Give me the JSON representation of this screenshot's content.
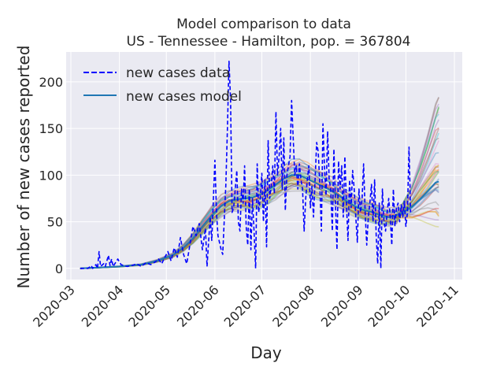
{
  "chart_data": {
    "type": "line",
    "title": "Model comparison to data",
    "subtitle": "US - Tennessee - Hamilton, pop. = 367804",
    "xlabel": "Day",
    "ylabel": "Number of new cases reported",
    "x_tick_labels": [
      "2020-03",
      "2020-04",
      "2020-05",
      "2020-06",
      "2020-07",
      "2020-08",
      "2020-09",
      "2020-10",
      "2020-11"
    ],
    "y_ticks": [
      0,
      50,
      100,
      150,
      200
    ],
    "x_range": [
      "2020-02-27",
      "2020-11-06"
    ],
    "ylim": [
      -12,
      232
    ],
    "grid": true,
    "legend_position": "upper-left",
    "series": [
      {
        "name": "new cases data",
        "style": "dashed",
        "color": "#0000ff",
        "points": [
          [
            "2020-03-07",
            0
          ],
          [
            "2020-03-12",
            0
          ],
          [
            "2020-03-14",
            3
          ],
          [
            "2020-03-15",
            0
          ],
          [
            "2020-03-17",
            4
          ],
          [
            "2020-03-18",
            0
          ],
          [
            "2020-03-19",
            18
          ],
          [
            "2020-03-20",
            2
          ],
          [
            "2020-03-22",
            5
          ],
          [
            "2020-03-23",
            2
          ],
          [
            "2020-03-25",
            14
          ],
          [
            "2020-03-26",
            3
          ],
          [
            "2020-03-27",
            10
          ],
          [
            "2020-03-28",
            2
          ],
          [
            "2020-03-31",
            10
          ],
          [
            "2020-04-02",
            4
          ],
          [
            "2020-04-04",
            3
          ],
          [
            "2020-04-06",
            2
          ],
          [
            "2020-04-09",
            3
          ],
          [
            "2020-04-12",
            5
          ],
          [
            "2020-04-15",
            2
          ],
          [
            "2020-04-18",
            6
          ],
          [
            "2020-04-21",
            4
          ],
          [
            "2020-04-24",
            7
          ],
          [
            "2020-04-26",
            10
          ],
          [
            "2020-04-28",
            5
          ],
          [
            "2020-04-30",
            12
          ],
          [
            "2020-05-02",
            18
          ],
          [
            "2020-05-04",
            8
          ],
          [
            "2020-05-06",
            22
          ],
          [
            "2020-05-08",
            12
          ],
          [
            "2020-05-10",
            33
          ],
          [
            "2020-05-12",
            15
          ],
          [
            "2020-05-14",
            5
          ],
          [
            "2020-05-16",
            25
          ],
          [
            "2020-05-18",
            45
          ],
          [
            "2020-05-20",
            35
          ],
          [
            "2020-05-22",
            48
          ],
          [
            "2020-05-24",
            20
          ],
          [
            "2020-05-26",
            43
          ],
          [
            "2020-05-27",
            2
          ],
          [
            "2020-05-29",
            55
          ],
          [
            "2020-05-30",
            30
          ],
          [
            "2020-06-01",
            116
          ],
          [
            "2020-06-02",
            60
          ],
          [
            "2020-06-03",
            35
          ],
          [
            "2020-06-05",
            20
          ],
          [
            "2020-06-06",
            15
          ],
          [
            "2020-06-08",
            90
          ],
          [
            "2020-06-09",
            150
          ],
          [
            "2020-06-10",
            222
          ],
          [
            "2020-06-11",
            180
          ],
          [
            "2020-06-12",
            60
          ],
          [
            "2020-06-13",
            65
          ],
          [
            "2020-06-15",
            105
          ],
          [
            "2020-06-16",
            50
          ],
          [
            "2020-06-17",
            40
          ],
          [
            "2020-06-18",
            85
          ],
          [
            "2020-06-19",
            70
          ],
          [
            "2020-06-20",
            110
          ],
          [
            "2020-06-21",
            45
          ],
          [
            "2020-06-22",
            25
          ],
          [
            "2020-06-23",
            85
          ],
          [
            "2020-06-24",
            20
          ],
          [
            "2020-06-25",
            75
          ],
          [
            "2020-06-26",
            40
          ],
          [
            "2020-06-27",
            0
          ],
          [
            "2020-06-28",
            112
          ],
          [
            "2020-06-29",
            60
          ],
          [
            "2020-06-30",
            75
          ],
          [
            "2020-07-01",
            102
          ],
          [
            "2020-07-02",
            50
          ],
          [
            "2020-07-03",
            95
          ],
          [
            "2020-07-04",
            23
          ],
          [
            "2020-07-05",
            137
          ],
          [
            "2020-07-06",
            75
          ],
          [
            "2020-07-07",
            88
          ],
          [
            "2020-07-08",
            110
          ],
          [
            "2020-07-09",
            80
          ],
          [
            "2020-07-10",
            168
          ],
          [
            "2020-07-11",
            100
          ],
          [
            "2020-07-12",
            120
          ],
          [
            "2020-07-13",
            150
          ],
          [
            "2020-07-14",
            85
          ],
          [
            "2020-07-15",
            140
          ],
          [
            "2020-07-16",
            62
          ],
          [
            "2020-07-17",
            100
          ],
          [
            "2020-07-18",
            110
          ],
          [
            "2020-07-19",
            120
          ],
          [
            "2020-07-20",
            180
          ],
          [
            "2020-07-21",
            140
          ],
          [
            "2020-07-22",
            100
          ],
          [
            "2020-07-23",
            110
          ],
          [
            "2020-07-24",
            85
          ],
          [
            "2020-07-25",
            112
          ],
          [
            "2020-07-26",
            95
          ],
          [
            "2020-07-27",
            85
          ],
          [
            "2020-07-28",
            40
          ],
          [
            "2020-07-29",
            75
          ],
          [
            "2020-07-30",
            95
          ],
          [
            "2020-07-31",
            110
          ],
          [
            "2020-08-01",
            65
          ],
          [
            "2020-08-02",
            88
          ],
          [
            "2020-08-03",
            55
          ],
          [
            "2020-08-04",
            95
          ],
          [
            "2020-08-05",
            135
          ],
          [
            "2020-08-06",
            125
          ],
          [
            "2020-08-07",
            90
          ],
          [
            "2020-08-08",
            40
          ],
          [
            "2020-08-09",
            155
          ],
          [
            "2020-08-10",
            110
          ],
          [
            "2020-08-11",
            78
          ],
          [
            "2020-08-12",
            147
          ],
          [
            "2020-08-13",
            95
          ],
          [
            "2020-08-14",
            85
          ],
          [
            "2020-08-15",
            40
          ],
          [
            "2020-08-16",
            128
          ],
          [
            "2020-08-17",
            70
          ],
          [
            "2020-08-18",
            20
          ],
          [
            "2020-08-19",
            115
          ],
          [
            "2020-08-20",
            85
          ],
          [
            "2020-08-21",
            110
          ],
          [
            "2020-08-22",
            55
          ],
          [
            "2020-08-23",
            120
          ],
          [
            "2020-08-24",
            70
          ],
          [
            "2020-08-25",
            30
          ],
          [
            "2020-08-26",
            95
          ],
          [
            "2020-08-27",
            65
          ],
          [
            "2020-08-28",
            105
          ],
          [
            "2020-08-29",
            85
          ],
          [
            "2020-08-30",
            55
          ],
          [
            "2020-08-31",
            28
          ],
          [
            "2020-09-01",
            85
          ],
          [
            "2020-09-02",
            60
          ],
          [
            "2020-09-03",
            75
          ],
          [
            "2020-09-04",
            112
          ],
          [
            "2020-09-05",
            60
          ],
          [
            "2020-09-06",
            25
          ],
          [
            "2020-09-07",
            55
          ],
          [
            "2020-09-08",
            70
          ],
          [
            "2020-09-09",
            90
          ],
          [
            "2020-09-10",
            50
          ],
          [
            "2020-09-11",
            95
          ],
          [
            "2020-09-12",
            35
          ],
          [
            "2020-09-13",
            5
          ],
          [
            "2020-09-14",
            70
          ],
          [
            "2020-09-15",
            0
          ],
          [
            "2020-09-16",
            85
          ],
          [
            "2020-09-17",
            50
          ],
          [
            "2020-09-18",
            40
          ],
          [
            "2020-09-19",
            60
          ],
          [
            "2020-09-20",
            75
          ],
          [
            "2020-09-21",
            55
          ],
          [
            "2020-09-22",
            25
          ],
          [
            "2020-09-23",
            85
          ],
          [
            "2020-09-24",
            45
          ],
          [
            "2020-09-25",
            65
          ],
          [
            "2020-09-26",
            70
          ],
          [
            "2020-09-27",
            50
          ],
          [
            "2020-09-28",
            68
          ],
          [
            "2020-09-29",
            55
          ],
          [
            "2020-09-30",
            72
          ],
          [
            "2020-10-01",
            45
          ],
          [
            "2020-10-02",
            60
          ],
          [
            "2020-10-03",
            130
          ],
          [
            "2020-10-04",
            60
          ]
        ]
      },
      {
        "name": "new cases model",
        "style": "solid",
        "color": "#1f77b4",
        "points": [
          [
            "2020-03-07",
            0
          ],
          [
            "2020-03-20",
            1
          ],
          [
            "2020-04-01",
            2
          ],
          [
            "2020-04-15",
            4
          ],
          [
            "2020-04-25",
            8
          ],
          [
            "2020-05-05",
            14
          ],
          [
            "2020-05-12",
            22
          ],
          [
            "2020-05-18",
            32
          ],
          [
            "2020-05-24",
            45
          ],
          [
            "2020-05-30",
            57
          ],
          [
            "2020-06-05",
            67
          ],
          [
            "2020-06-10",
            72
          ],
          [
            "2020-06-15",
            74
          ],
          [
            "2020-06-20",
            75
          ],
          [
            "2020-06-25",
            76
          ],
          [
            "2020-06-30",
            79
          ],
          [
            "2020-07-05",
            84
          ],
          [
            "2020-07-10",
            90
          ],
          [
            "2020-07-15",
            96
          ],
          [
            "2020-07-20",
            100
          ],
          [
            "2020-07-25",
            100
          ],
          [
            "2020-07-30",
            96
          ],
          [
            "2020-08-05",
            91
          ],
          [
            "2020-08-10",
            87
          ],
          [
            "2020-08-15",
            83
          ],
          [
            "2020-08-20",
            77
          ],
          [
            "2020-08-25",
            71
          ],
          [
            "2020-08-31",
            65
          ],
          [
            "2020-09-05",
            62
          ],
          [
            "2020-09-10",
            60
          ],
          [
            "2020-09-15",
            57
          ],
          [
            "2020-09-20",
            55
          ],
          [
            "2020-09-25",
            57
          ],
          [
            "2020-09-30",
            61
          ],
          [
            "2020-10-05",
            66
          ],
          [
            "2020-10-10",
            74
          ],
          [
            "2020-10-15",
            83
          ],
          [
            "2020-10-20",
            92
          ],
          [
            "2020-10-22",
            93
          ]
        ]
      }
    ],
    "ensemble_band": {
      "description_visible": "faint colored ensemble model runs",
      "colors": [
        "#1f77b4",
        "#ff7f0e",
        "#2ca02c",
        "#d62728",
        "#9467bd",
        "#8c564b",
        "#e377c2",
        "#7f7f7f",
        "#bcbd22",
        "#17becf"
      ],
      "end_spread_max": 185,
      "end_spread_min": 35
    }
  }
}
